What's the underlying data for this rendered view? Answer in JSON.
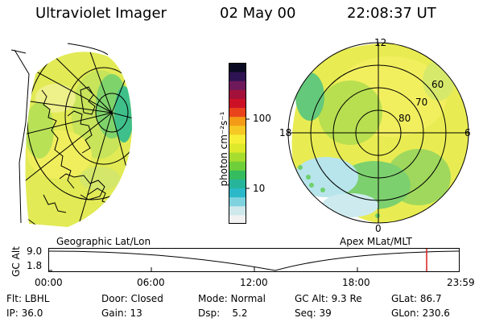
{
  "header": {
    "instrument": "Ultraviolet Imager",
    "date": "02 May 00",
    "time": "22:08:37 UT"
  },
  "geo_panel": {
    "label": "Geographic Lat/Lon"
  },
  "mag_panel": {
    "label": "Apex MLat/MLT",
    "lat_labels": [
      "60",
      "70",
      "80"
    ],
    "mlt_labels": {
      "top": "12",
      "left": "18",
      "right": "6",
      "bottom": "0"
    }
  },
  "colorbar": {
    "unit": "photon cm⁻²s⁻¹",
    "ticks": [
      "100",
      "10"
    ],
    "colors": [
      "#f2f2f2",
      "#cfe8ec",
      "#7fd3df",
      "#2bb9c9",
      "#26b59a",
      "#34bc5f",
      "#6fcf3a",
      "#a6dd2e",
      "#dde92a",
      "#f7ef36",
      "#f7c823",
      "#f39a17",
      "#e8431a",
      "#cc1126",
      "#a3113a",
      "#6e1a5a",
      "#2e1352",
      "#0a0a22"
    ]
  },
  "timeline": {
    "ylabel": "GC Alt",
    "ytick_top": "9.0",
    "ytick_bottom": "1.8",
    "xticks": [
      "00:00",
      "06:00",
      "12:00",
      "18:00",
      "23:59"
    ],
    "marker_color": "#d81e1e"
  },
  "status": {
    "flt": "Flt: LBHL",
    "door": "Door: Closed",
    "mode": "Mode: Normal",
    "gcalt": "GC Alt: 9.3 Re",
    "glat": "GLat:  86.7",
    "ip": "IP: 36.0",
    "gain": "Gain: 13",
    "dsp": "Dsp:    5.2",
    "seq": "Seq: 39",
    "glon": "GLon: 230.6"
  }
}
